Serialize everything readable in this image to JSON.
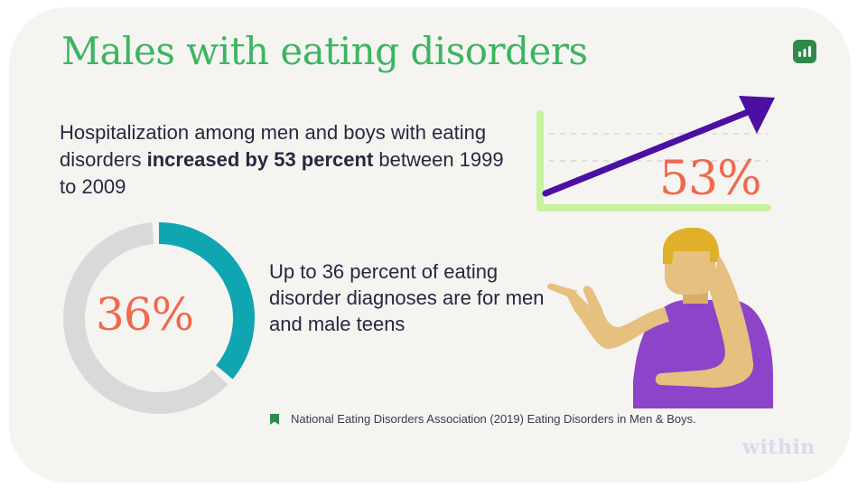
{
  "title": "Males with eating disorders",
  "stat_hospitalization": {
    "text_before": "Hospitalization among men and boys with eating disorders ",
    "text_bold": "increased by 53 percent",
    "text_after": " between 1999 to 2009",
    "big_number": "53%"
  },
  "stat_diagnoses": {
    "text": "Up to 36 percent of eating disorder diagnoses are for men and male teens",
    "big_number": "36%",
    "donut_fraction": 0.36
  },
  "source": "National Eating Disorders Association (2019) Eating Disorders in Men & Boys.",
  "wordmark": "within",
  "icons": [
    "chart-badge-icon",
    "bookmark-icon",
    "trend-arrow-icon",
    "pointing-person-illustration"
  ],
  "colors": {
    "title_green": "#3cb562",
    "accent_orange": "#ee6a4c",
    "donut_teal": "#0fa6b1",
    "donut_track": "#d9d9d9",
    "arrow_purple": "#4b0fa3",
    "chart_axis_green": "#c7f2a0",
    "shirt_purple": "#8e44c9",
    "hair_gold": "#e0b02a",
    "skin_tan": "#e6c07e"
  }
}
